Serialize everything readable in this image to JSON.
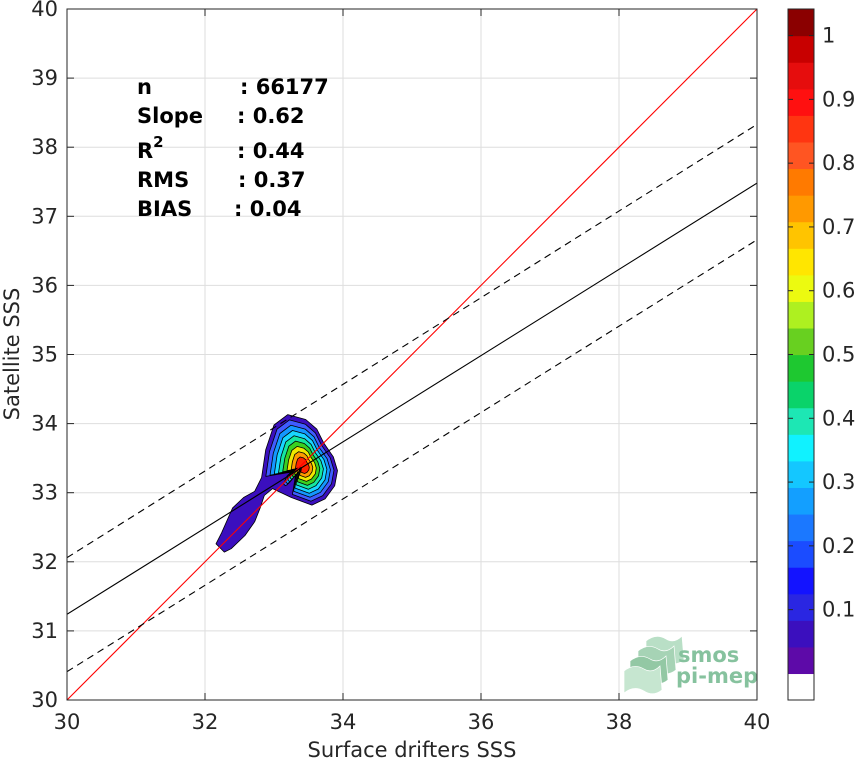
{
  "chart_data": {
    "type": "scatter",
    "subtype": "density-contour",
    "xlabel": "Surface drifters SSS",
    "ylabel": "Satellite SSS",
    "xlim": [
      30,
      40
    ],
    "ylim": [
      30,
      40
    ],
    "xticks": [
      30,
      32,
      34,
      36,
      38,
      40
    ],
    "yticks": [
      30,
      31,
      32,
      33,
      34,
      35,
      36,
      37,
      38,
      39,
      40
    ],
    "grid": true,
    "stats": [
      {
        "label": "n",
        "value": ": 66177"
      },
      {
        "label": "Slope",
        "value": ": 0.62"
      },
      {
        "label": "R",
        "sup": "2",
        "value": ": 0.44"
      },
      {
        "label": "RMS",
        "value": ": 0.37"
      },
      {
        "label": "BIAS",
        "value": ": 0.04"
      }
    ],
    "lines": [
      {
        "name": "one-to-one",
        "color": "#ff0000",
        "style": "solid",
        "points": [
          [
            30,
            30
          ],
          [
            40,
            40
          ]
        ]
      },
      {
        "name": "regression",
        "color": "#000000",
        "style": "solid",
        "points": [
          [
            30,
            31.24
          ],
          [
            40,
            37.48
          ]
        ]
      },
      {
        "name": "upper-bound",
        "color": "#000000",
        "style": "dashed",
        "points": [
          [
            30,
            32.06
          ],
          [
            40,
            38.33
          ]
        ]
      },
      {
        "name": "lower-bound",
        "color": "#000000",
        "style": "dashed",
        "points": [
          [
            30,
            30.41
          ],
          [
            40,
            36.66
          ]
        ]
      }
    ],
    "density": {
      "peak": [
        33.42,
        33.38
      ],
      "levels": [
        0.05,
        0.15,
        0.25,
        0.35,
        0.45,
        0.55,
        0.65,
        0.75,
        0.85
      ],
      "colors": [
        "#3b0fbe",
        "#3f5cff",
        "#1497ff",
        "#18d6ff",
        "#15e6a0",
        "#3ad020",
        "#f0e800",
        "#ff9b00",
        "#ff2200"
      ],
      "outer_contour": [
        [
          32.22,
          32.2
        ],
        [
          32.28,
          32.14
        ],
        [
          32.38,
          32.19
        ],
        [
          32.58,
          32.38
        ],
        [
          32.72,
          32.58
        ],
        [
          32.8,
          32.78
        ],
        [
          32.86,
          32.96
        ],
        [
          32.98,
          33.06
        ],
        [
          33.25,
          32.93
        ],
        [
          33.55,
          32.82
        ],
        [
          33.74,
          32.91
        ],
        [
          33.88,
          33.1
        ],
        [
          33.92,
          33.32
        ],
        [
          33.86,
          33.52
        ],
        [
          33.72,
          33.72
        ],
        [
          33.62,
          33.92
        ],
        [
          33.46,
          34.06
        ],
        [
          33.2,
          34.13
        ],
        [
          33.0,
          33.98
        ],
        [
          32.88,
          33.62
        ],
        [
          32.82,
          33.22
        ],
        [
          32.72,
          33.02
        ],
        [
          32.56,
          32.93
        ],
        [
          32.4,
          32.78
        ],
        [
          32.24,
          32.42
        ],
        [
          32.16,
          32.26
        ]
      ]
    },
    "colorbar": {
      "ticks": [
        "0.1",
        "0.2",
        "0.3",
        "0.4",
        "0.5",
        "0.6",
        "0.7",
        "0.8",
        "0.9",
        "1"
      ],
      "colors": [
        "#ffffff",
        "#5d0aa8",
        "#3b0fbe",
        "#2a26e2",
        "#1313ff",
        "#1b4cff",
        "#1b78ff",
        "#139fff",
        "#14c7ff",
        "#10f2ff",
        "#1de7b4",
        "#0ad36a",
        "#1ec830",
        "#68d020",
        "#aef020",
        "#ecfa10",
        "#ffe600",
        "#ffc400",
        "#ff9900",
        "#ff7a00",
        "#ff5522",
        "#ff3511",
        "#ff1010",
        "#e60d0d",
        "#c80000",
        "#8b0000"
      ]
    },
    "watermark": {
      "line1": "smos",
      "line2": "pi-mep",
      "color": "#86c29e"
    }
  }
}
